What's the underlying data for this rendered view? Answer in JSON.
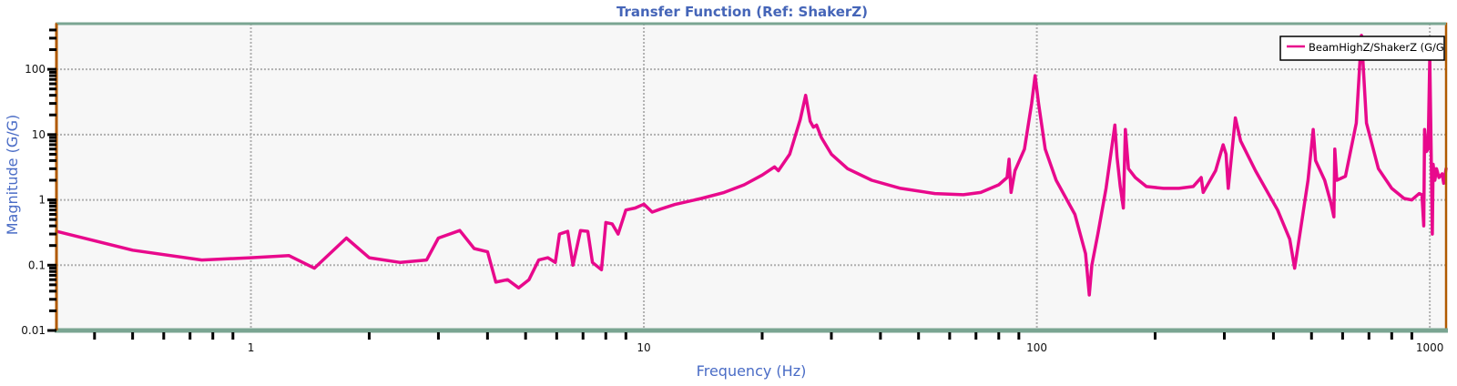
{
  "chart_data": {
    "type": "line",
    "title": "Transfer Function (Ref: ShakerZ)",
    "xlabel": "Frequency (Hz)",
    "ylabel": "Magnitude (G/G)",
    "xscale": "log",
    "yscale": "log",
    "xlim": [
      0.32,
      1100
    ],
    "ylim": [
      0.01,
      500
    ],
    "x_tick_labels": [
      {
        "value": 1,
        "label": "1"
      },
      {
        "value": 10,
        "label": "10"
      },
      {
        "value": 100,
        "label": "100"
      },
      {
        "value": 1000,
        "label": "1000"
      }
    ],
    "y_tick_labels": [
      {
        "value": 0.01,
        "label": "0.01"
      },
      {
        "value": 0.1,
        "label": "0.1"
      },
      {
        "value": 1,
        "label": "1"
      },
      {
        "value": 10,
        "label": "10"
      },
      {
        "value": 100,
        "label": "100"
      }
    ],
    "grid": true,
    "legend": {
      "position": "top-right",
      "entries": [
        "BeamHighZ/ShakerZ (G/G"
      ]
    },
    "series": [
      {
        "name": "BeamHighZ/ShakerZ (G/G",
        "color": "#e8098c",
        "points": [
          [
            0.32,
            0.33
          ],
          [
            0.5,
            0.17
          ],
          [
            0.75,
            0.12
          ],
          [
            1.0,
            0.13
          ],
          [
            1.25,
            0.14
          ],
          [
            1.45,
            0.09
          ],
          [
            1.75,
            0.26
          ],
          [
            2.0,
            0.13
          ],
          [
            2.4,
            0.11
          ],
          [
            2.8,
            0.12
          ],
          [
            3.0,
            0.26
          ],
          [
            3.4,
            0.34
          ],
          [
            3.7,
            0.18
          ],
          [
            4.0,
            0.16
          ],
          [
            4.2,
            0.055
          ],
          [
            4.5,
            0.06
          ],
          [
            4.8,
            0.045
          ],
          [
            5.1,
            0.06
          ],
          [
            5.4,
            0.12
          ],
          [
            5.7,
            0.13
          ],
          [
            5.95,
            0.11
          ],
          [
            6.1,
            0.3
          ],
          [
            6.4,
            0.33
          ],
          [
            6.6,
            0.1
          ],
          [
            6.9,
            0.34
          ],
          [
            7.2,
            0.33
          ],
          [
            7.4,
            0.11
          ],
          [
            7.8,
            0.085
          ],
          [
            8.0,
            0.45
          ],
          [
            8.3,
            0.43
          ],
          [
            8.6,
            0.3
          ],
          [
            9.0,
            0.7
          ],
          [
            9.5,
            0.75
          ],
          [
            10.0,
            0.86
          ],
          [
            10.5,
            0.65
          ],
          [
            11.0,
            0.72
          ],
          [
            12.0,
            0.85
          ],
          [
            14.0,
            1.05
          ],
          [
            16.0,
            1.3
          ],
          [
            18.0,
            1.7
          ],
          [
            20.0,
            2.4
          ],
          [
            21.5,
            3.2
          ],
          [
            22.0,
            2.8
          ],
          [
            23.5,
            5.0
          ],
          [
            25.0,
            17.0
          ],
          [
            25.8,
            40.0
          ],
          [
            26.5,
            16.0
          ],
          [
            27.0,
            13.0
          ],
          [
            27.5,
            14.0
          ],
          [
            28.3,
            9.0
          ],
          [
            30.0,
            5.0
          ],
          [
            33.0,
            3.0
          ],
          [
            38.0,
            2.0
          ],
          [
            45.0,
            1.5
          ],
          [
            55.0,
            1.25
          ],
          [
            65.0,
            1.2
          ],
          [
            72.0,
            1.3
          ],
          [
            80.0,
            1.7
          ],
          [
            84.0,
            2.2
          ],
          [
            85.0,
            4.2
          ],
          [
            86.0,
            1.3
          ],
          [
            88.0,
            2.8
          ],
          [
            93.0,
            6.0
          ],
          [
            97.0,
            30.0
          ],
          [
            99.0,
            80.0
          ],
          [
            101.0,
            30.0
          ],
          [
            105.0,
            6.0
          ],
          [
            112.0,
            2.0
          ],
          [
            125.0,
            0.6
          ],
          [
            133.0,
            0.15
          ],
          [
            136.0,
            0.035
          ],
          [
            138.0,
            0.1
          ],
          [
            143.0,
            0.3
          ],
          [
            150.0,
            1.5
          ],
          [
            158.0,
            14.0
          ],
          [
            160.0,
            4.5
          ],
          [
            163.0,
            1.6
          ],
          [
            166.0,
            0.75
          ],
          [
            168.0,
            12.0
          ],
          [
            171.0,
            3.0
          ],
          [
            178.0,
            2.2
          ],
          [
            190.0,
            1.6
          ],
          [
            210.0,
            1.5
          ],
          [
            230.0,
            1.5
          ],
          [
            250.0,
            1.6
          ],
          [
            262.0,
            2.2
          ],
          [
            265.0,
            1.3
          ],
          [
            285.0,
            2.8
          ],
          [
            298.0,
            7.0
          ],
          [
            303.0,
            5.0
          ],
          [
            307.0,
            1.5
          ],
          [
            320.0,
            18.0
          ],
          [
            330.0,
            8.0
          ],
          [
            360.0,
            2.8
          ],
          [
            410.0,
            0.7
          ],
          [
            440.0,
            0.25
          ],
          [
            453.0,
            0.09
          ],
          [
            465.0,
            0.25
          ],
          [
            490.0,
            2.0
          ],
          [
            505.0,
            12.0
          ],
          [
            512.0,
            4.0
          ],
          [
            540.0,
            2.0
          ],
          [
            560.0,
            0.9
          ],
          [
            570.0,
            0.55
          ],
          [
            573.0,
            6.0
          ],
          [
            580.0,
            2.0
          ],
          [
            610.0,
            2.3
          ],
          [
            650.0,
            15.0
          ],
          [
            670.0,
            330.0
          ],
          [
            690.0,
            15.0
          ],
          [
            740.0,
            3.0
          ],
          [
            800.0,
            1.5
          ],
          [
            860.0,
            1.05
          ],
          [
            900.0,
            1.0
          ],
          [
            940.0,
            1.25
          ],
          [
            955.0,
            1.2
          ],
          [
            965.0,
            0.4
          ],
          [
            970.0,
            12.0
          ],
          [
            980.0,
            5.5
          ],
          [
            990.0,
            6.0
          ],
          [
            1000.0,
            150.0
          ],
          [
            1008.0,
            6.0
          ],
          [
            1015.0,
            0.3
          ],
          [
            1020.0,
            3.5
          ],
          [
            1030.0,
            2.0
          ],
          [
            1040.0,
            3.0
          ],
          [
            1055.0,
            2.2
          ],
          [
            1075.0,
            2.5
          ],
          [
            1085.0,
            1.8
          ],
          [
            1100.0,
            3.0
          ]
        ]
      }
    ]
  },
  "colors": {
    "title": "#4565b8",
    "axis_label": "#4a6cc6",
    "frame": "#b05a00",
    "plot_bg": "#f7f7f7",
    "x_axis_strip": "#7aa592",
    "series": "#e8098c"
  }
}
